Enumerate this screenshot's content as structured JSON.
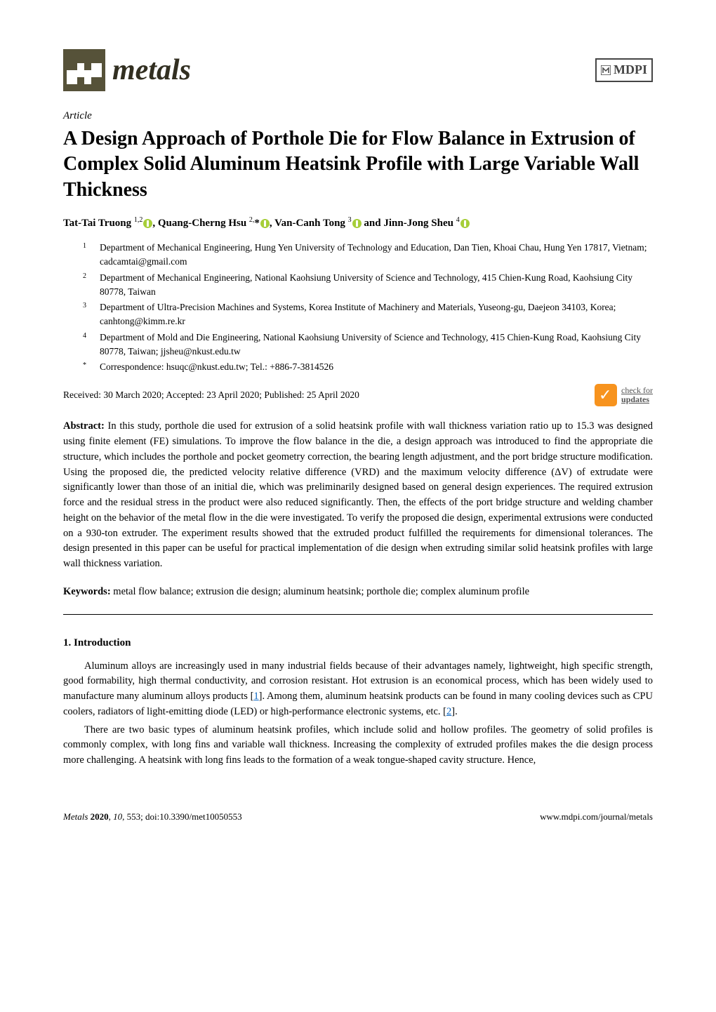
{
  "header": {
    "journal_name": "metals",
    "publisher": "MDPI",
    "logo_bg_color": "#565239",
    "logo_fg_color": "#ffffff"
  },
  "article": {
    "label": "Article",
    "title": "A Design Approach of Porthole Die for Flow Balance in Extrusion of Complex Solid Aluminum Heatsink Profile with Large Variable Wall Thickness",
    "authors_html": "Tat-Tai Truong <sup>1,2</sup><span class='orcid'></span>, Quang-Cherng Hsu <sup>2,</sup>*<span class='orcid'></span>, Van-Canh Tong <sup>3</sup><span class='orcid'></span> and Jinn-Jong Sheu <sup>4</sup><span class='orcid'></span>",
    "affiliations": [
      {
        "num": "1",
        "text": "Department of Mechanical Engineering, Hung Yen University of Technology and Education, Dan Tien, Khoai Chau, Hung Yen 17817, Vietnam; cadcamtai@gmail.com"
      },
      {
        "num": "2",
        "text": "Department of Mechanical Engineering, National Kaohsiung University of Science and Technology, 415 Chien-Kung Road, Kaohsiung City 80778, Taiwan"
      },
      {
        "num": "3",
        "text": "Department of Ultra-Precision Machines and Systems, Korea Institute of Machinery and Materials, Yuseong-gu, Daejeon 34103, Korea; canhtong@kimm.re.kr"
      },
      {
        "num": "4",
        "text": "Department of Mold and Die Engineering, National Kaohsiung University of Science and Technology, 415 Chien-Kung Road, Kaohsiung City 80778, Taiwan; jjsheu@nkust.edu.tw"
      },
      {
        "num": "*",
        "text": "Correspondence: hsuqc@nkust.edu.tw; Tel.: +886-7-3814526"
      }
    ],
    "received_line": "Received: 30 March 2020; Accepted: 23 April 2020; Published: 25 April 2020",
    "check_updates": {
      "line1": "check for",
      "line2": "updates",
      "icon_color": "#f7931e"
    }
  },
  "abstract": {
    "label": "Abstract:",
    "text": "In this study, porthole die used for extrusion of a solid heatsink profile with wall thickness variation ratio up to 15.3 was designed using finite element (FE) simulations. To improve the flow balance in the die, a design approach was introduced to find the appropriate die structure, which includes the porthole and pocket geometry correction, the bearing length adjustment, and the port bridge structure modification. Using the proposed die, the predicted velocity relative difference (VRD) and the maximum velocity difference (ΔV) of extrudate were significantly lower than those of an initial die, which was preliminarily designed based on general design experiences. The required extrusion force and the residual stress in the product were also reduced significantly. Then, the effects of the port bridge structure and welding chamber height on the behavior of the metal flow in the die were investigated. To verify the proposed die design, experimental extrusions were conducted on a 930-ton extruder. The experiment results showed that the extruded product fulfilled the requirements for dimensional tolerances. The design presented in this paper can be useful for practical implementation of die design when extruding similar solid heatsink profiles with large wall thickness variation."
  },
  "keywords": {
    "label": "Keywords:",
    "text": "metal flow balance; extrusion die design; aluminum heatsink; porthole die; complex aluminum profile"
  },
  "section1": {
    "heading": "1. Introduction",
    "para1": "Aluminum alloys are increasingly used in many industrial fields because of their advantages namely, lightweight, high specific strength, good formability, high thermal conductivity, and corrosion resistant. Hot extrusion is an economical process, which has been widely used to manufacture many aluminum alloys products [",
    "ref1": "1",
    "para1b": "]. Among them, aluminum heatsink products can be found in many cooling devices such as CPU coolers, radiators of light-emitting diode (LED) or high-performance electronic systems, etc. [",
    "ref2": "2",
    "para1c": "].",
    "para2": "There are two basic types of aluminum heatsink profiles, which include solid and hollow profiles. The geometry of solid profiles is commonly complex, with long fins and variable wall thickness. Increasing the complexity of extruded profiles makes the die design process more challenging. A heatsink with long fins leads to the formation of a weak tongue-shaped cavity structure. Hence,"
  },
  "footer": {
    "left_journal": "Metals",
    "left_year": "2020",
    "left_vol": "10",
    "left_page": "553",
    "left_doi": "doi:10.3390/met10050553",
    "right": "www.mdpi.com/journal/metals"
  },
  "styling": {
    "link_color": "#0563c1",
    "orcid_color": "#a6ce39"
  }
}
